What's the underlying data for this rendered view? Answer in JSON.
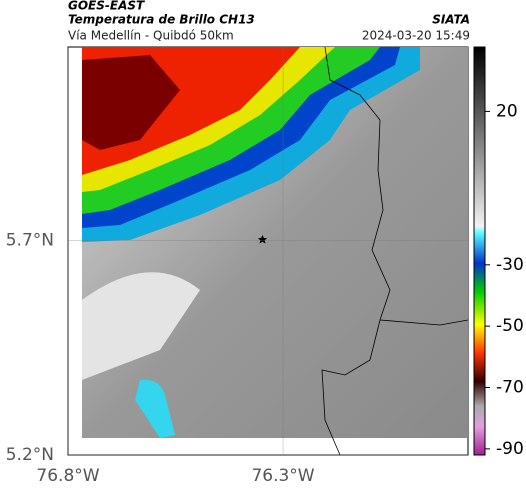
{
  "header": {
    "source": "GOES-EAST",
    "title": "Temperatura de Brillo CH13",
    "subtitle": "Vía Medellín - Quibdó 50km",
    "agency": "SIATA",
    "timestamp": "2024-03-20 15:49"
  },
  "map": {
    "lonlim": [
      -76.8,
      -75.87
    ],
    "latlim": [
      5.2,
      6.15
    ],
    "lon_ticks": [
      {
        "value": -76.8,
        "label": "76.8°W"
      },
      {
        "value": -76.3,
        "label": "76.3°W"
      }
    ],
    "lat_ticks": [
      {
        "value": 5.7,
        "label": "5.7°N"
      },
      {
        "value": 5.2,
        "label": "5.2°N"
      }
    ]
  },
  "colorbar": {
    "clim": [
      -92,
      41
    ],
    "ticks": [
      20,
      -30,
      -50,
      -70,
      -90
    ]
  }
}
